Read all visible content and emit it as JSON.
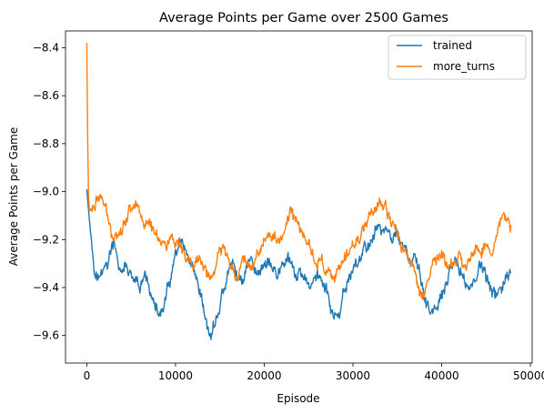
{
  "chart_data": {
    "type": "line",
    "title": "Average Points per Game over 2500 Games",
    "xlabel": "Episode",
    "ylabel": "Average Points per Game",
    "xlim": [
      -2400,
      50200
    ],
    "ylim": [
      -9.715,
      -8.33
    ],
    "xticks": [
      0,
      10000,
      20000,
      30000,
      40000,
      50000
    ],
    "yticks": [
      -9.6,
      -9.4,
      -9.2,
      -9.0,
      -8.8,
      -8.6,
      -8.4
    ],
    "xtick_labels": [
      "0",
      "10000",
      "20000",
      "30000",
      "40000",
      "50000"
    ],
    "ytick_labels": [
      "−9.6",
      "−9.4",
      "−9.2",
      "−9.0",
      "−8.8",
      "−8.6",
      "−8.4"
    ],
    "grid": false,
    "legend_position": "top-right",
    "series": [
      {
        "name": "trained",
        "color": "#1f77b4",
        "noise": 0.032,
        "x": [
          0,
          300,
          600,
          1000,
          1500,
          2000,
          2500,
          3000,
          3500,
          4000,
          4500,
          5000,
          5500,
          6000,
          6500,
          7000,
          7500,
          8000,
          8500,
          9000,
          9500,
          10000,
          10500,
          11000,
          11500,
          12000,
          12500,
          13000,
          13500,
          14000,
          14500,
          15000,
          15500,
          16000,
          16500,
          17000,
          17500,
          18000,
          18500,
          19000,
          19500,
          20000,
          20500,
          21000,
          21500,
          22000,
          22500,
          23000,
          23500,
          24000,
          24500,
          25000,
          25500,
          26000,
          26500,
          27000,
          27500,
          28000,
          28500,
          29000,
          29500,
          30000,
          30500,
          31000,
          31500,
          32000,
          32500,
          33000,
          33500,
          34000,
          34500,
          35000,
          35500,
          36000,
          36500,
          37000,
          37500,
          38000,
          38500,
          39000,
          39500,
          40000,
          40500,
          41000,
          41500,
          42000,
          42500,
          43000,
          43500,
          44000,
          44500,
          45000,
          45500,
          46000,
          46500,
          47000,
          47500,
          47800
        ],
        "y": [
          -8.99,
          -9.12,
          -9.22,
          -9.34,
          -9.36,
          -9.32,
          -9.28,
          -9.22,
          -9.3,
          -9.34,
          -9.31,
          -9.37,
          -9.4,
          -9.42,
          -9.36,
          -9.38,
          -9.46,
          -9.52,
          -9.5,
          -9.44,
          -9.36,
          -9.28,
          -9.22,
          -9.26,
          -9.3,
          -9.36,
          -9.42,
          -9.48,
          -9.56,
          -9.61,
          -9.54,
          -9.48,
          -9.4,
          -9.34,
          -9.3,
          -9.36,
          -9.38,
          -9.3,
          -9.28,
          -9.34,
          -9.32,
          -9.3,
          -9.28,
          -9.32,
          -9.36,
          -9.3,
          -9.28,
          -9.32,
          -9.36,
          -9.34,
          -9.38,
          -9.4,
          -9.36,
          -9.34,
          -9.38,
          -9.42,
          -9.48,
          -9.52,
          -9.54,
          -9.44,
          -9.36,
          -9.32,
          -9.3,
          -9.26,
          -9.24,
          -9.2,
          -9.16,
          -9.14,
          -9.16,
          -9.18,
          -9.2,
          -9.16,
          -9.22,
          -9.26,
          -9.3,
          -9.28,
          -9.36,
          -9.42,
          -9.48,
          -9.52,
          -9.49,
          -9.44,
          -9.4,
          -9.35,
          -9.3,
          -9.32,
          -9.36,
          -9.4,
          -9.38,
          -9.34,
          -9.3,
          -9.36,
          -9.42,
          -9.44,
          -9.4,
          -9.38,
          -9.36,
          -9.34
        ]
      },
      {
        "name": "more_turns",
        "color": "#ff7f0e",
        "noise": 0.03,
        "x": [
          0,
          100,
          200,
          300,
          600,
          1000,
          1500,
          2000,
          2500,
          3000,
          3500,
          4000,
          4500,
          5000,
          5500,
          6000,
          6500,
          7000,
          7500,
          8000,
          8500,
          9000,
          9500,
          10000,
          10500,
          11000,
          11500,
          12000,
          12500,
          13000,
          13500,
          14000,
          14500,
          15000,
          15500,
          16000,
          16500,
          17000,
          17500,
          18000,
          18500,
          19000,
          19500,
          20000,
          20500,
          21000,
          21500,
          22000,
          22500,
          23000,
          23500,
          24000,
          24500,
          25000,
          25500,
          26000,
          26500,
          27000,
          27500,
          28000,
          28500,
          29000,
          29500,
          30000,
          30500,
          31000,
          31500,
          32000,
          32500,
          33000,
          33500,
          34000,
          34500,
          35000,
          35500,
          36000,
          36500,
          37000,
          37500,
          38000,
          38500,
          39000,
          39500,
          40000,
          40500,
          41000,
          41500,
          42000,
          42500,
          43000,
          43500,
          44000,
          44500,
          45000,
          45500,
          46000,
          46500,
          47000,
          47500,
          47800
        ],
        "y": [
          -8.38,
          -8.78,
          -9.02,
          -9.08,
          -9.06,
          -9.04,
          -9.02,
          -9.06,
          -9.14,
          -9.18,
          -9.16,
          -9.14,
          -9.1,
          -9.06,
          -9.04,
          -9.08,
          -9.12,
          -9.14,
          -9.16,
          -9.18,
          -9.2,
          -9.22,
          -9.2,
          -9.22,
          -9.26,
          -9.28,
          -9.3,
          -9.32,
          -9.28,
          -9.3,
          -9.34,
          -9.36,
          -9.32,
          -9.26,
          -9.24,
          -9.28,
          -9.32,
          -9.34,
          -9.3,
          -9.28,
          -9.3,
          -9.28,
          -9.24,
          -9.2,
          -9.18,
          -9.2,
          -9.22,
          -9.18,
          -9.12,
          -9.08,
          -9.12,
          -9.16,
          -9.18,
          -9.22,
          -9.26,
          -9.3,
          -9.28,
          -9.32,
          -9.34,
          -9.36,
          -9.34,
          -9.3,
          -9.26,
          -9.22,
          -9.2,
          -9.16,
          -9.12,
          -9.08,
          -9.06,
          -9.04,
          -9.08,
          -9.12,
          -9.14,
          -9.18,
          -9.22,
          -9.26,
          -9.3,
          -9.34,
          -9.4,
          -9.42,
          -9.36,
          -9.3,
          -9.28,
          -9.26,
          -9.3,
          -9.32,
          -9.3,
          -9.28,
          -9.32,
          -9.3,
          -9.26,
          -9.22,
          -9.24,
          -9.2,
          -9.24,
          -9.22,
          -9.16,
          -9.1,
          -9.1,
          -9.14
        ]
      }
    ]
  }
}
